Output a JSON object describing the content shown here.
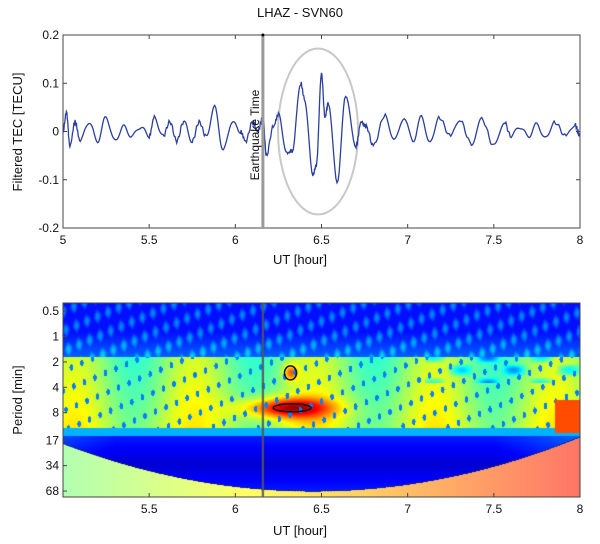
{
  "chart_data": [
    {
      "type": "line",
      "title": "LHAZ - SVN60",
      "xlabel": "UT [hour]",
      "ylabel": "Filtered TEC [TECU]",
      "xlim": [
        5,
        8
      ],
      "ylim": [
        -0.2,
        0.2
      ],
      "xticks": [
        "5",
        "5.5",
        "6",
        "6.5",
        "7",
        "7.5",
        "8"
      ],
      "yticks": [
        "-0.2",
        "-0.1",
        "0",
        "0.1",
        "0.2"
      ],
      "grid": false,
      "line_color": "#2b3f9e",
      "annotation": {
        "text": "Earthquake Time",
        "x": 6.16,
        "line_color": "#9a9a9a"
      },
      "highlight_ellipse": {
        "center_x": 6.48,
        "center_y": 0,
        "color": "#c8c8c8"
      },
      "series": [
        {
          "x": [
            5.0,
            5.02,
            5.04,
            5.07,
            5.1,
            5.15,
            5.2,
            5.25,
            5.3,
            5.35,
            5.4,
            5.45,
            5.5,
            5.53,
            5.58,
            5.62,
            5.66,
            5.7,
            5.75,
            5.79,
            5.83,
            5.88,
            5.93,
            5.98,
            6.03,
            6.06,
            6.1,
            6.13,
            6.16,
            6.18,
            6.22,
            6.25,
            6.3,
            6.33,
            6.38,
            6.4,
            6.45,
            6.47,
            6.5,
            6.52,
            6.54,
            6.59,
            6.64,
            6.7,
            6.73,
            6.76,
            6.8,
            6.87,
            6.92,
            6.98,
            7.03,
            7.08,
            7.13,
            7.18,
            7.25,
            7.3,
            7.37,
            7.43,
            7.5,
            7.56,
            7.6,
            7.65,
            7.7,
            7.75,
            7.8,
            7.85,
            7.92,
            7.97,
            8.0
          ],
          "y": [
            0.0,
            0.04,
            -0.03,
            0.02,
            -0.02,
            0.02,
            -0.02,
            0.03,
            -0.02,
            0.01,
            -0.01,
            0.01,
            -0.01,
            0.03,
            -0.01,
            0.02,
            -0.02,
            0.02,
            -0.02,
            0.02,
            -0.01,
            0.05,
            -0.04,
            0.02,
            0.0,
            -0.02,
            0.02,
            0.0,
            0.03,
            -0.05,
            0.01,
            0.035,
            -0.045,
            -0.04,
            0.1,
            0.07,
            -0.09,
            -0.07,
            0.12,
            0.03,
            0.06,
            -0.105,
            0.07,
            -0.03,
            0.02,
            0.01,
            -0.03,
            0.035,
            -0.02,
            0.03,
            -0.02,
            0.03,
            -0.025,
            0.03,
            -0.01,
            0.025,
            -0.025,
            0.025,
            -0.03,
            0.02,
            -0.01,
            0.01,
            -0.01,
            0.015,
            -0.015,
            0.02,
            -0.01,
            0.015,
            -0.01
          ]
        }
      ]
    },
    {
      "type": "heatmap",
      "xlabel": "UT [hour]",
      "ylabel": "Period [min]",
      "xlim": [
        5,
        8
      ],
      "xticks": [
        "5.5",
        "6",
        "6.5",
        "7",
        "7.5",
        "8"
      ],
      "yticks": [
        "0.5",
        "1",
        "2",
        "4",
        "8",
        "17",
        "34",
        "68"
      ],
      "y_scale": "log",
      "colormap": "jet",
      "annotation": {
        "x": 6.16,
        "line_color": "#555555"
      },
      "significance_contours": [
        {
          "x": 6.32,
          "period": 2.7
        },
        {
          "x": 6.33,
          "period": 7
        }
      ]
    }
  ]
}
